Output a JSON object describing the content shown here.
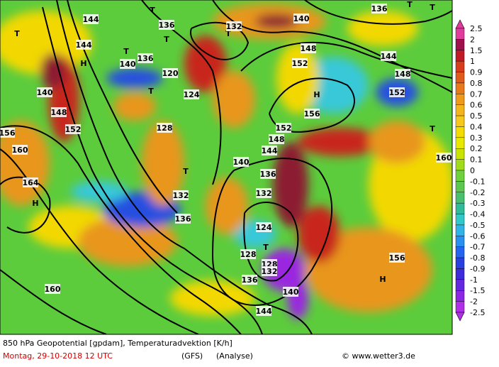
{
  "map": {
    "contour_labels": [
      "144",
      "144",
      "T",
      "136",
      "T",
      "T",
      "140",
      "136",
      "120",
      "T",
      "124",
      "128",
      "H",
      "140",
      "148",
      "152",
      "156",
      "160",
      "164",
      "H",
      "160",
      "T",
      "132",
      "136",
      "T",
      "T",
      "132",
      "148",
      "152",
      "144",
      "148",
      "152",
      "H",
      "156",
      "152",
      "144",
      "148",
      "140",
      "136",
      "132",
      "124",
      "T",
      "128",
      "128",
      "132",
      "136",
      "140",
      "144",
      "T",
      "160",
      "156",
      "H",
      "140",
      "136",
      "T",
      "T"
    ],
    "footer": {
      "line1": "850 hPa Geopotential [gpdam], Temperaturadvektion [K/h]",
      "date": "Montag, 29-10-2018  12 UTC",
      "model": "(GFS)",
      "run": "(Analyse)",
      "credit": "© www.wetter3.de"
    }
  },
  "colorbar": {
    "labels": [
      "2.5",
      "2",
      "1.5",
      "1",
      "0.9",
      "0.8",
      "0.7",
      "0.6",
      "0.5",
      "0.4",
      "0.3",
      "0.2",
      "0.1",
      "0",
      "-0.1",
      "-0.2",
      "-0.3",
      "-0.4",
      "-0.5",
      "-0.6",
      "-0.7",
      "-0.8",
      "-0.9",
      "-1",
      "-1.5",
      "-2",
      "-2.5"
    ]
  }
}
